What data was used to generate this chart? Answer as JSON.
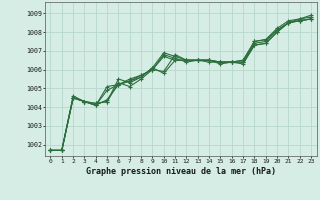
{
  "title": "Graphe pression niveau de la mer (hPa)",
  "bg_color": "#d5ede5",
  "grid_color": "#b8d8cc",
  "line_color": "#2d6e3e",
  "xlim": [
    -0.5,
    23.5
  ],
  "ylim": [
    1001.4,
    1009.6
  ],
  "yticks": [
    1002,
    1003,
    1004,
    1005,
    1006,
    1007,
    1008,
    1009
  ],
  "xticks": [
    0,
    1,
    2,
    3,
    4,
    5,
    6,
    7,
    8,
    9,
    10,
    11,
    12,
    13,
    14,
    15,
    16,
    17,
    18,
    19,
    20,
    21,
    22,
    23
  ],
  "series": [
    [
      1001.7,
      1001.7,
      1004.5,
      1004.3,
      1004.1,
      1004.9,
      1005.2,
      1005.4,
      1005.7,
      1006.0,
      1005.9,
      1006.8,
      1006.5,
      1006.5,
      1006.5,
      1006.4,
      1006.4,
      1006.4,
      1007.3,
      1007.4,
      1008.0,
      1008.5,
      1008.6,
      1008.7
    ],
    [
      1001.7,
      1001.7,
      1004.5,
      1004.3,
      1004.2,
      1004.3,
      1005.3,
      1005.1,
      1005.5,
      1006.0,
      1006.8,
      1006.6,
      1006.4,
      1006.5,
      1006.4,
      1006.4,
      1006.4,
      1006.4,
      1007.4,
      1007.5,
      1008.1,
      1008.5,
      1008.6,
      1008.7
    ],
    [
      1001.7,
      1001.7,
      1004.5,
      1004.3,
      1004.2,
      1004.3,
      1005.5,
      1005.3,
      1005.6,
      1006.1,
      1005.8,
      1006.5,
      1006.5,
      1006.5,
      1006.5,
      1006.3,
      1006.4,
      1006.3,
      1007.3,
      1007.4,
      1008.0,
      1008.5,
      1008.6,
      1008.7
    ],
    [
      1001.7,
      1001.7,
      1004.6,
      1004.3,
      1004.1,
      1004.4,
      1005.2,
      1005.4,
      1005.6,
      1006.1,
      1006.9,
      1006.7,
      1006.5,
      1006.5,
      1006.5,
      1006.4,
      1006.4,
      1006.5,
      1007.5,
      1007.6,
      1008.1,
      1008.5,
      1008.7,
      1008.8
    ],
    [
      1001.7,
      1001.7,
      1004.5,
      1004.3,
      1004.1,
      1005.1,
      1005.2,
      1005.5,
      1005.7,
      1006.0,
      1006.7,
      1006.5,
      1006.5,
      1006.5,
      1006.5,
      1006.4,
      1006.4,
      1006.5,
      1007.5,
      1007.6,
      1008.2,
      1008.6,
      1008.7,
      1008.9
    ]
  ]
}
